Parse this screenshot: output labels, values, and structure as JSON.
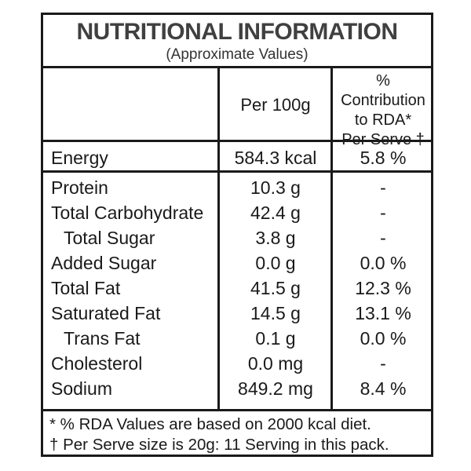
{
  "title": "NUTRITIONAL INFORMATION",
  "subtitle": "(Approximate Values)",
  "headers": {
    "per100g": "Per 100g",
    "rda_line1": "% Contribution",
    "rda_line2": "to RDA*",
    "rda_line3": "Per Serve †"
  },
  "energy": {
    "name": "Energy",
    "value": "584.3 kcal",
    "rda": "5.8 %"
  },
  "rows": [
    {
      "name": "Protein",
      "value": "10.3 g",
      "rda": "-"
    },
    {
      "name": "Total Carbohydrate",
      "value": "42.4 g",
      "rda": "-"
    },
    {
      "name": "Total Sugar",
      "value": "3.8 g",
      "rda": "-"
    },
    {
      "name": "Added Sugar",
      "value": "0.0 g",
      "rda": "0.0 %"
    },
    {
      "name": "Total Fat",
      "value": "41.5 g",
      "rda": "12.3 %"
    },
    {
      "name": "Saturated Fat",
      "value": "14.5 g",
      "rda": "13.1 %"
    },
    {
      "name": "Trans Fat",
      "value": "0.1 g",
      "rda": "0.0 %"
    },
    {
      "name": "Cholesterol",
      "value": "0.0 mg",
      "rda": "-"
    },
    {
      "name": "Sodium",
      "value": "849.2 mg",
      "rda": "8.4 %"
    }
  ],
  "footnotes": [
    "* % RDA Values are based on 2000 kcal diet.",
    "† Per Serve size is 20g: 11 Serving in this pack."
  ]
}
